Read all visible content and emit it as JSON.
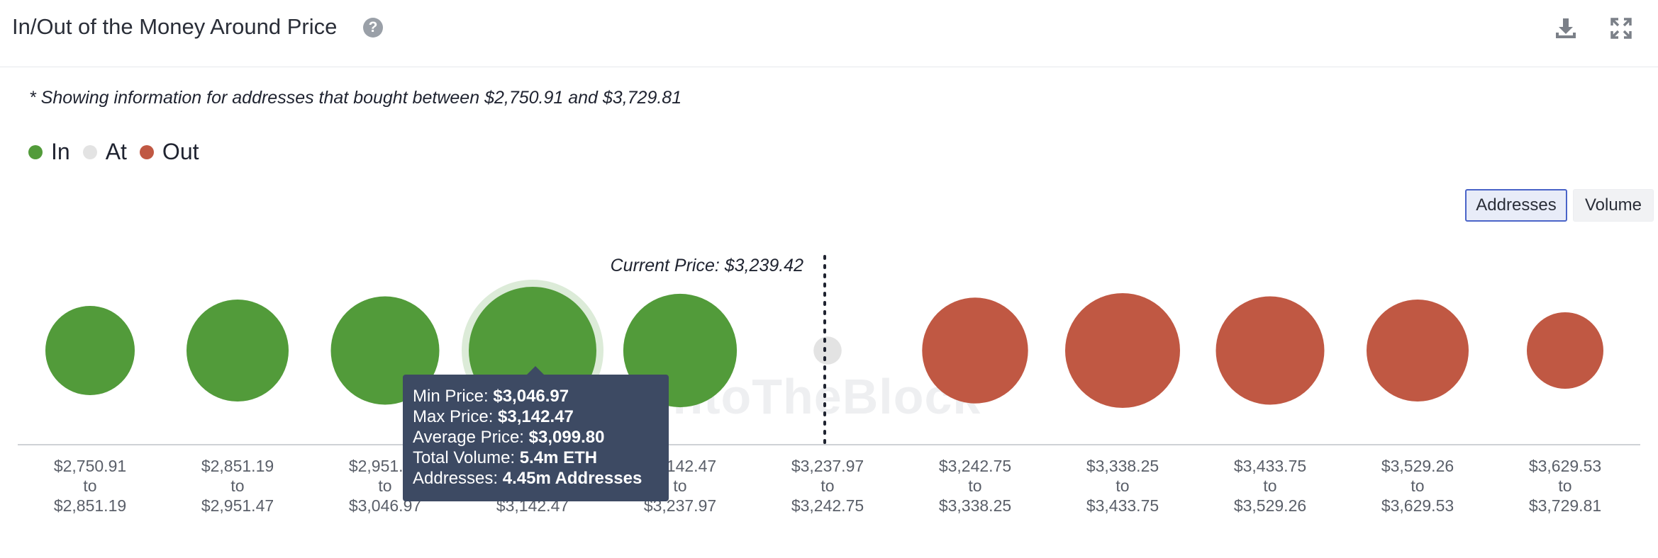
{
  "header": {
    "title": "In/Out of the Money Around Price",
    "help_icon": "question-circle-icon",
    "download_icon": "download-icon",
    "expand_icon": "expand-icon"
  },
  "note": "* Showing information for addresses that bought between $2,750.91 and $3,729.81",
  "legend": [
    {
      "label": "In",
      "color": "#529b3a"
    },
    {
      "label": "At",
      "color": "#e3e3e3"
    },
    {
      "label": "Out",
      "color": "#c05843"
    }
  ],
  "toggle": {
    "addresses": "Addresses",
    "volume": "Volume",
    "active": "Addresses"
  },
  "watermark": "IntoTheBlock",
  "chart_data": {
    "type": "bubble",
    "current_price_label": "Current Price: $3,239.42",
    "current_price": 3239.42,
    "metric": "addresses",
    "buckets": [
      {
        "from": "$2,750.91",
        "to": "$2,851.19",
        "status": "In",
        "relative_size": 0.7
      },
      {
        "from": "$2,851.19",
        "to": "$2,951.47",
        "status": "In",
        "relative_size": 0.8
      },
      {
        "from": "$2,951.47",
        "to": "$3,046.97",
        "status": "In",
        "relative_size": 0.85
      },
      {
        "from": "$3,046.97",
        "to": "$3,142.47",
        "status": "In",
        "relative_size": 1.0
      },
      {
        "from": "$3,142.47",
        "to": "$3,237.97",
        "status": "In",
        "relative_size": 0.89
      },
      {
        "from": "$3,237.97",
        "to": "$3,242.75",
        "status": "At",
        "relative_size": 0.22
      },
      {
        "from": "$3,242.75",
        "to": "$3,338.25",
        "status": "Out",
        "relative_size": 0.83
      },
      {
        "from": "$3,338.25",
        "to": "$3,433.75",
        "status": "Out",
        "relative_size": 0.9
      },
      {
        "from": "$3,433.75",
        "to": "$3,529.26",
        "status": "Out",
        "relative_size": 0.85
      },
      {
        "from": "$3,529.26",
        "to": "$3,629.53",
        "status": "Out",
        "relative_size": 0.8
      },
      {
        "from": "$3,629.53",
        "to": "$3,729.81",
        "status": "Out",
        "relative_size": 0.6
      }
    ],
    "range_connector": "to",
    "highlighted_index": 3
  },
  "tooltip": {
    "min_label": "Min Price:",
    "min_value": "$3,046.97",
    "max_label": "Max Price:",
    "max_value": "$3,142.47",
    "avg_label": "Average Price:",
    "avg_value": "$3,099.80",
    "vol_label": "Total Volume:",
    "vol_value": "5.4m ETH",
    "addr_label": "Addresses:",
    "addr_value": "4.45m Addresses"
  }
}
